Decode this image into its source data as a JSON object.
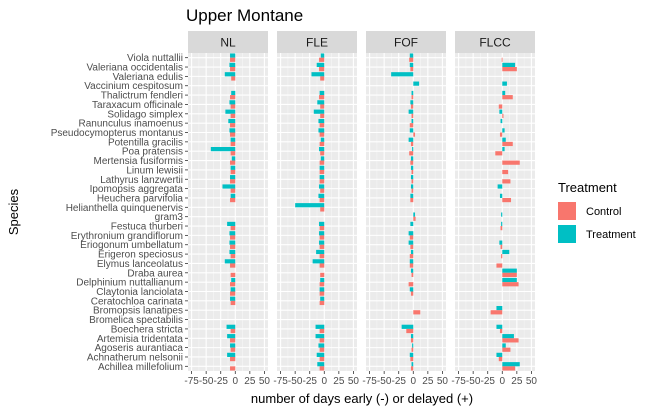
{
  "chart_data": {
    "type": "bar",
    "orientation": "horizontal",
    "title": "Upper Montane",
    "xlabel": "number of days early (-) or delayed (+)",
    "ylabel": "Species",
    "xlim": [
      -75,
      50
    ],
    "xticks": [
      -75,
      -50,
      -25,
      0,
      25,
      50
    ],
    "xtick_labels": [
      "-75",
      "-50",
      "-25",
      "0",
      "25",
      "50"
    ],
    "grid": true,
    "legend": {
      "title": "Treatment",
      "position": "right",
      "entries": [
        {
          "name": "Control",
          "color": "#F8766D"
        },
        {
          "name": "Treatment",
          "color": "#00BFC4"
        }
      ]
    },
    "panels": [
      "NL",
      "FLE",
      "FOF",
      "FLCC"
    ],
    "species": [
      "Viola nuttallii",
      "Valeriana occidentalis",
      "Valeriana edulis",
      "Vaccinium cespitosum",
      "Thalictrum fendleri",
      "Taraxacum officinale",
      "Solidago simplex",
      "Ranunculus inamoenus",
      "Pseudocymopterus montanus",
      "Potentilla gracilis",
      "Poa pratensis",
      "Mertensia fusiformis",
      "Linum lewisii",
      "Lathyrus lanzwertii",
      "Ipomopsis aggregata",
      "Heuchera parvifolia",
      "Helianthella quinquenervis",
      "gram3",
      "Festuca thurberi",
      "Erythronium grandiflorum",
      "Eriogonum umbellatum",
      "Erigeron speciosus",
      "Elymus lanceolatus",
      "Draba aurea",
      "Delphinium nuttallianum",
      "Claytonia lanciolata",
      "Ceratochloa carinata",
      "Bromopsis lanatipes",
      "Bromelica spectabilis",
      "Boechera stricta",
      "Artemisia tridentata",
      "Agoseris aurantiaca",
      "Achnatherum nelsonii",
      "Achillea millefolium"
    ],
    "series": [
      {
        "name": "Control",
        "values": {
          "NL": [
            -9,
            -9,
            -7,
            null,
            -9,
            -8,
            -8,
            -9,
            -9,
            -8,
            -8,
            -9,
            -8,
            -9,
            -8,
            -9,
            null,
            null,
            -8,
            -9,
            -9,
            -8,
            -9,
            -8,
            -9,
            -9,
            -8,
            null,
            null,
            -8,
            -9,
            -8,
            -9,
            -9
          ],
          "FLE": [
            -9,
            -9,
            -7,
            null,
            -9,
            -7,
            -7,
            -8,
            -8,
            -8,
            -7,
            -8,
            -8,
            -8,
            -7,
            -8,
            -7,
            null,
            -8,
            -8,
            -8,
            -8,
            -8,
            -7,
            -8,
            -8,
            -8,
            null,
            null,
            -8,
            -8,
            -8,
            -8,
            -8
          ],
          "FOF": [
            -7,
            -5,
            null,
            null,
            -3,
            -4,
            -3,
            -6,
            3,
            -4,
            -7,
            -5,
            -3,
            -3,
            -3,
            -5,
            null,
            4,
            null,
            -6,
            -5,
            -6,
            -6,
            -3,
            -8,
            -4,
            null,
            12,
            null,
            -12,
            -4,
            -3,
            -5,
            -4
          ],
          "FLCC": [
            -1,
            25,
            null,
            null,
            18,
            -6,
            2,
            null,
            -4,
            18,
            -12,
            30,
            10,
            14,
            null,
            15,
            null,
            null,
            -3,
            null,
            -3,
            -2,
            -10,
            25,
            28,
            null,
            null,
            -20,
            null,
            -4,
            28,
            14,
            -6,
            22
          ]
        }
      },
      {
        "name": "Treatment",
        "values": {
          "NL": [
            -9,
            -10,
            -18,
            null,
            -7,
            -10,
            -17,
            -12,
            -10,
            -8,
            -42,
            -6,
            -8,
            -9,
            -22,
            -8,
            null,
            null,
            -14,
            -10,
            -10,
            -10,
            -18,
            null,
            -7,
            -8,
            -9,
            null,
            null,
            -15,
            -14,
            -9,
            -14,
            null
          ],
          "FLE": [
            -6,
            -13,
            -22,
            null,
            -8,
            -12,
            -18,
            -10,
            -10,
            -6,
            -9,
            -6,
            -8,
            -8,
            -9,
            -10,
            -50,
            null,
            -9,
            -9,
            -9,
            -14,
            -20,
            null,
            -7,
            -8,
            -7,
            null,
            null,
            -15,
            -15,
            -10,
            -13,
            -12
          ],
          "FOF": [
            -6,
            -6,
            -38,
            10,
            -3,
            -5,
            -8,
            -3,
            -6,
            -8,
            -2,
            -4,
            -4,
            -4,
            -4,
            -5,
            null,
            3,
            -5,
            -8,
            -8,
            -4,
            -6,
            -4,
            null,
            -6,
            null,
            null,
            null,
            -20,
            -4,
            -2,
            -6,
            -3
          ],
          "FLCC": [
            null,
            22,
            null,
            8,
            5,
            null,
            -5,
            -3,
            4,
            6,
            4,
            null,
            null,
            null,
            -8,
            -4,
            null,
            -2,
            -2,
            null,
            -5,
            12,
            null,
            25,
            25,
            null,
            null,
            -10,
            null,
            -10,
            20,
            6,
            -10,
            30
          ]
        }
      }
    ]
  }
}
